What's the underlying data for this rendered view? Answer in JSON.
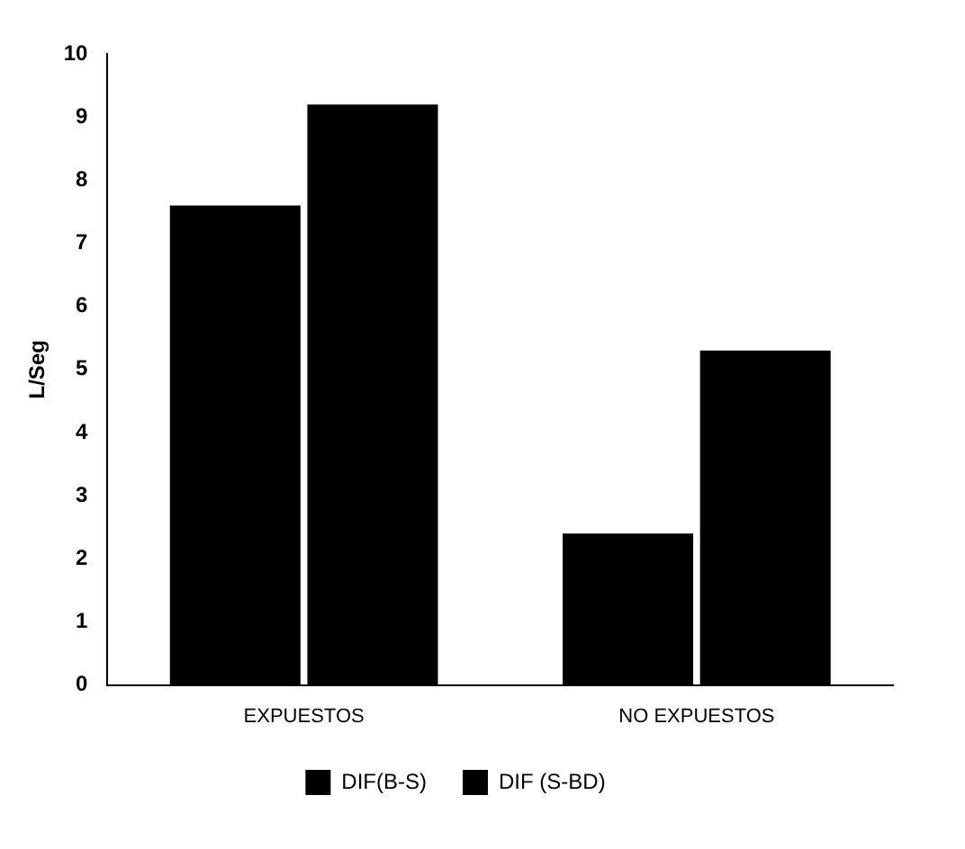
{
  "chart_data": {
    "type": "bar",
    "ylabel": "L/Seg",
    "categories": [
      "EXPUESTOS",
      "NO EXPUESTOS"
    ],
    "series": [
      {
        "name": "DIF(B-S)",
        "color": "#000000",
        "values": [
          7.6,
          2.4
        ]
      },
      {
        "name": "DIF (S-BD)",
        "color": "#000000",
        "values": [
          9.2,
          5.3
        ]
      }
    ],
    "ylim": [
      0,
      10
    ],
    "yticks": [
      0,
      1,
      2,
      3,
      4,
      5,
      6,
      7,
      8,
      9,
      10
    ],
    "grid": false,
    "legend": "bottom"
  }
}
